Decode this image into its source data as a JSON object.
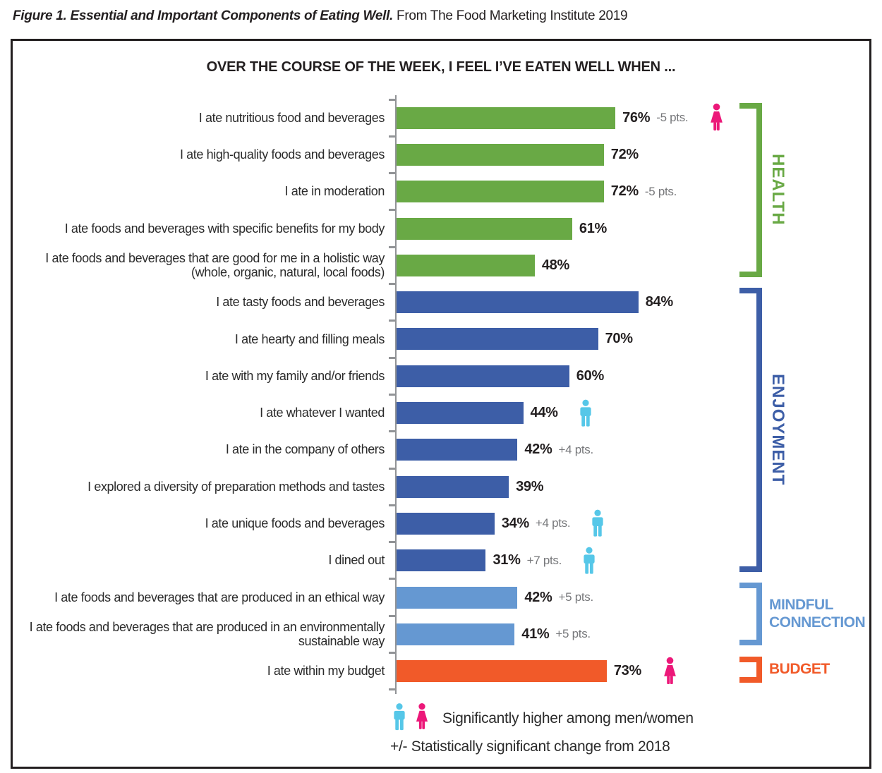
{
  "caption": {
    "bold": "Figure 1. Essential and Important Components of Eating Well.",
    "source": " From The Food Marketing Institute 2019"
  },
  "colors": {
    "health": "#69A945",
    "enjoyment": "#3D5EA7",
    "mindful": "#6598D2",
    "budget": "#F15A29",
    "male_icon": "#56C7E8",
    "female_icon": "#EC1879",
    "axis": "#919396",
    "change_text": "#77787B",
    "text": "#231F20"
  },
  "chart_data": {
    "type": "bar",
    "orientation": "horizontal",
    "title": "OVER THE COURSE OF THE WEEK, I FEEL I’VE EATEN WELL WHEN ...",
    "unit": "%",
    "xlim": [
      0,
      100
    ],
    "grid": false,
    "legend_position": "bottom",
    "groups": [
      {
        "id": "health",
        "label": "HEALTH",
        "label_lines": [
          "HEALTH"
        ],
        "label_layout": "vertical",
        "rows": [
          0,
          4
        ]
      },
      {
        "id": "enjoyment",
        "label": "ENJOYMENT",
        "label_lines": [
          "ENJOYMENT"
        ],
        "label_layout": "vertical",
        "rows": [
          5,
          12
        ]
      },
      {
        "id": "mindful",
        "label": "MINDFUL CONNECTION",
        "label_lines": [
          "MINDFUL",
          "CONNECTION"
        ],
        "label_layout": "horizontal",
        "rows": [
          13,
          14
        ]
      },
      {
        "id": "budget",
        "label": "BUDGET",
        "label_lines": [
          "BUDGET"
        ],
        "label_layout": "horizontal",
        "rows": [
          15,
          15
        ]
      }
    ],
    "bars": [
      {
        "label": "I ate nutritious food and beverages",
        "value": 76,
        "value_label": "76%",
        "change": "-5 pts.",
        "icon": "female",
        "group": "health"
      },
      {
        "label": "I ate high-quality foods and beverages",
        "value": 72,
        "value_label": "72%",
        "change": "",
        "icon": "",
        "group": "health"
      },
      {
        "label": "I ate in moderation",
        "value": 72,
        "value_label": "72%",
        "change": "-5 pts.",
        "icon": "",
        "group": "health"
      },
      {
        "label": "I ate foods and beverages with specific benefits for my body",
        "value": 61,
        "value_label": "61%",
        "change": "",
        "icon": "",
        "group": "health"
      },
      {
        "label": "I ate foods and beverages that are good for me in a holistic way (whole, organic, natural, local foods)",
        "value": 48,
        "value_label": "48%",
        "change": "",
        "icon": "",
        "group": "health"
      },
      {
        "label": "I ate tasty foods and beverages",
        "value": 84,
        "value_label": "84%",
        "change": "",
        "icon": "",
        "group": "enjoyment"
      },
      {
        "label": "I ate hearty and filling meals",
        "value": 70,
        "value_label": "70%",
        "change": "",
        "icon": "",
        "group": "enjoyment"
      },
      {
        "label": "I ate with my family and/or friends",
        "value": 60,
        "value_label": "60%",
        "change": "",
        "icon": "",
        "group": "enjoyment"
      },
      {
        "label": "I ate whatever I wanted",
        "value": 44,
        "value_label": "44%",
        "change": "",
        "icon": "male",
        "group": "enjoyment"
      },
      {
        "label": "I ate in the company of others",
        "value": 42,
        "value_label": "42%",
        "change": "+4 pts.",
        "icon": "",
        "group": "enjoyment"
      },
      {
        "label": "I explored a diversity of preparation methods and tastes",
        "value": 39,
        "value_label": "39%",
        "change": "",
        "icon": "",
        "group": "enjoyment"
      },
      {
        "label": "I ate unique foods and beverages",
        "value": 34,
        "value_label": "34%",
        "change": "+4 pts.",
        "icon": "male",
        "group": "enjoyment"
      },
      {
        "label": "I dined out",
        "value": 31,
        "value_label": "31%",
        "change": "+7 pts.",
        "icon": "male",
        "group": "enjoyment"
      },
      {
        "label": "I ate foods and beverages that are produced in an ethical way",
        "value": 42,
        "value_label": "42%",
        "change": "+5 pts.",
        "icon": "",
        "group": "mindful"
      },
      {
        "label": "I ate foods and beverages that are produced in an environmentally sustainable way",
        "value": 41,
        "value_label": "41%",
        "change": "+5 pts.",
        "icon": "",
        "group": "mindful"
      },
      {
        "label": "I ate within my budget",
        "value": 73,
        "value_label": "73%",
        "change": "",
        "icon": "female",
        "group": "budget"
      }
    ]
  },
  "legend": {
    "line1": "Significantly higher among men/women",
    "line2": "+/- Statistically significant change from 2018"
  }
}
